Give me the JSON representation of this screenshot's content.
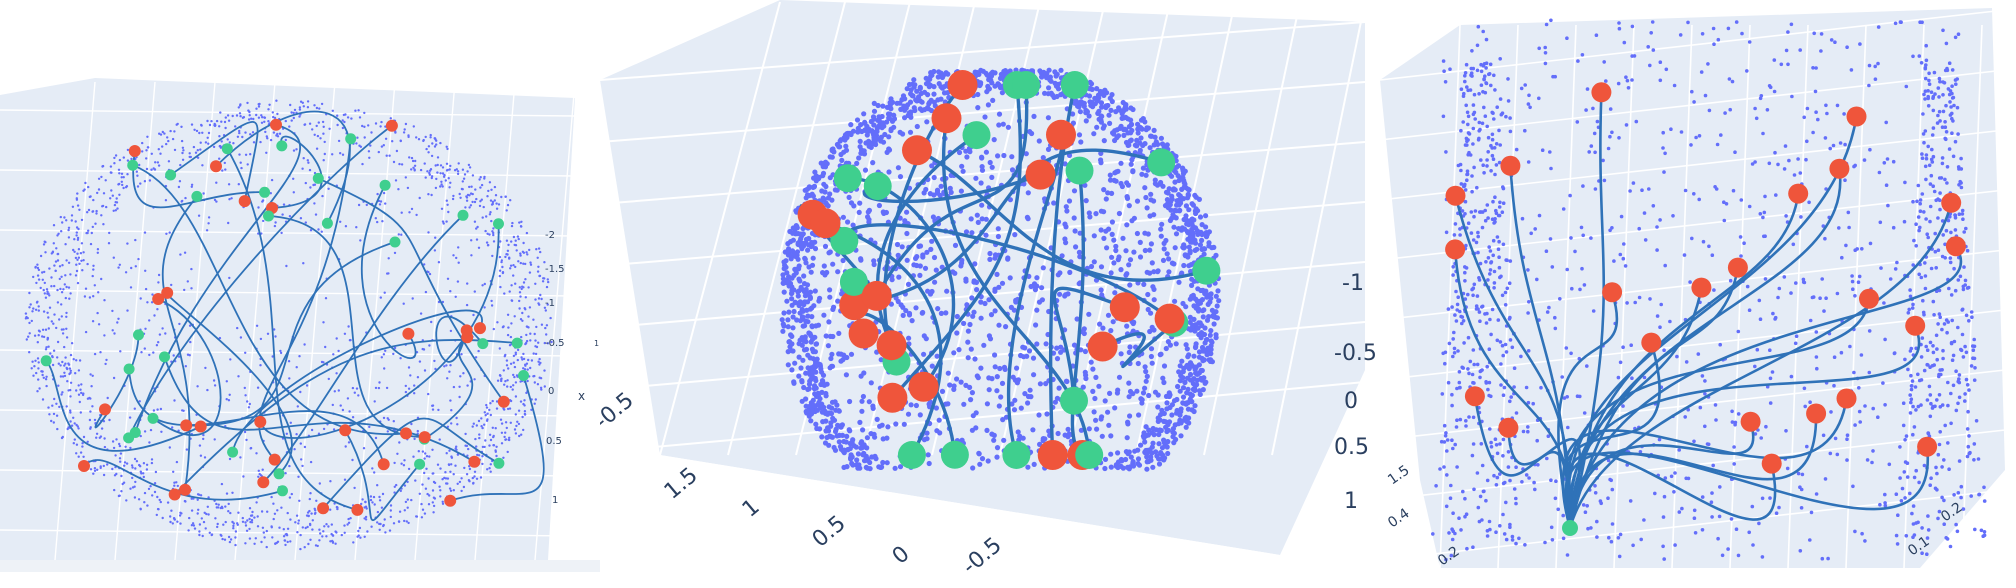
{
  "chart_data": [
    {
      "type": "scatter",
      "title": "",
      "z_ticks": [
        "-2",
        "-1.5",
        "-1",
        "-0.5",
        "0",
        "0.5",
        "1"
      ],
      "x_label": "x",
      "extra_labels": [
        "1"
      ],
      "colors": {
        "points": "#636efa",
        "curves": "#2f72b8",
        "source": "#3fcf8e",
        "target": "#ef553b",
        "pane": "#e5ecf6"
      },
      "sample_points": 2200,
      "geodesics": 30
    },
    {
      "type": "scatter",
      "title": "",
      "x_ticks": [
        "1.5",
        "1",
        "0.5",
        "0",
        "-0.5"
      ],
      "y_ticks": [
        "-1",
        "-0.5",
        "0",
        "0.5",
        "1"
      ],
      "extra_labels": [
        "-0.5"
      ],
      "colors": {
        "points": "#636efa",
        "curves": "#2f72b8",
        "source": "#3fcf8e",
        "target": "#ef553b",
        "pane": "#e5ecf6"
      },
      "sample_points": 3000,
      "geodesics": 18
    },
    {
      "type": "scatter",
      "title": "",
      "left_ticks": [
        "1.5",
        "0.4",
        "0.2"
      ],
      "right_ticks": [
        "0.2",
        "0.1"
      ],
      "colors": {
        "points": "#636efa",
        "curves": "#2f72b8",
        "source": "#3fcf8e",
        "target": "#ef553b",
        "pane": "#e5ecf6"
      },
      "sample_points": 1500,
      "geodesics": 22
    }
  ]
}
